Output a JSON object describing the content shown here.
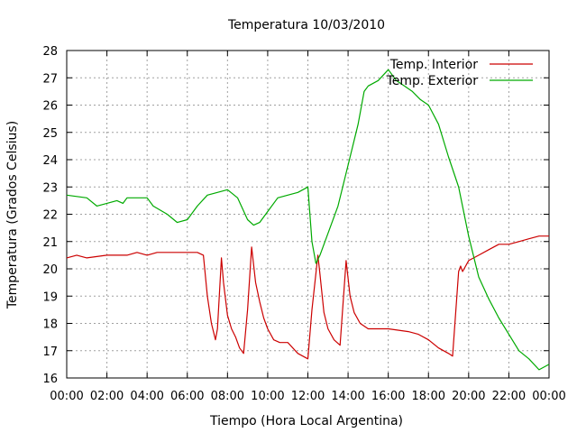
{
  "chart_data": {
    "type": "line",
    "title": "Temperatura 10/03/2010",
    "xlabel": "Tiempo (Hora Local Argentina)",
    "ylabel": "Temperatura (Grados Celsius)",
    "xlim": [
      0,
      24
    ],
    "ylim": [
      16,
      28
    ],
    "x_ticks": [
      "00:00",
      "02:00",
      "04:00",
      "06:00",
      "08:00",
      "10:00",
      "12:00",
      "14:00",
      "16:00",
      "18:00",
      "20:00",
      "22:00",
      "00:00"
    ],
    "y_ticks": [
      "16",
      "17",
      "18",
      "19",
      "20",
      "21",
      "22",
      "23",
      "24",
      "25",
      "26",
      "27",
      "28"
    ],
    "grid": true,
    "legend_position": "top-right",
    "series": [
      {
        "name": "Temp. Interior",
        "color": "#cc0000",
        "points": [
          [
            0,
            20.4
          ],
          [
            0.5,
            20.5
          ],
          [
            1,
            20.4
          ],
          [
            2,
            20.5
          ],
          [
            3,
            20.5
          ],
          [
            3.5,
            20.6
          ],
          [
            4,
            20.5
          ],
          [
            4.5,
            20.6
          ],
          [
            5,
            20.6
          ],
          [
            6,
            20.6
          ],
          [
            6.5,
            20.6
          ],
          [
            6.8,
            20.5
          ],
          [
            7,
            19.0
          ],
          [
            7.2,
            18.0
          ],
          [
            7.4,
            17.4
          ],
          [
            7.5,
            17.8
          ],
          [
            7.7,
            20.4
          ],
          [
            7.8,
            19.5
          ],
          [
            8,
            18.3
          ],
          [
            8.2,
            17.8
          ],
          [
            8.4,
            17.5
          ],
          [
            8.6,
            17.1
          ],
          [
            8.8,
            16.9
          ],
          [
            9,
            18.5
          ],
          [
            9.2,
            20.8
          ],
          [
            9.4,
            19.5
          ],
          [
            9.6,
            18.8
          ],
          [
            9.8,
            18.2
          ],
          [
            10,
            17.8
          ],
          [
            10.3,
            17.4
          ],
          [
            10.6,
            17.3
          ],
          [
            11,
            17.3
          ],
          [
            11.5,
            16.9
          ],
          [
            12,
            16.7
          ],
          [
            12.2,
            18.5
          ],
          [
            12.5,
            20.5
          ],
          [
            12.6,
            19.8
          ],
          [
            12.8,
            18.4
          ],
          [
            13,
            17.8
          ],
          [
            13.3,
            17.4
          ],
          [
            13.6,
            17.2
          ],
          [
            13.9,
            20.3
          ],
          [
            14.1,
            19.0
          ],
          [
            14.3,
            18.4
          ],
          [
            14.6,
            18.0
          ],
          [
            15,
            17.8
          ],
          [
            16,
            17.8
          ],
          [
            17,
            17.7
          ],
          [
            17.5,
            17.6
          ],
          [
            18,
            17.4
          ],
          [
            18.5,
            17.1
          ],
          [
            19,
            16.9
          ],
          [
            19.2,
            16.8
          ],
          [
            19.5,
            19.9
          ],
          [
            19.6,
            20.1
          ],
          [
            19.7,
            19.9
          ],
          [
            20,
            20.3
          ],
          [
            20.5,
            20.5
          ],
          [
            21,
            20.7
          ],
          [
            21.5,
            20.9
          ],
          [
            22,
            20.9
          ],
          [
            22.5,
            21.0
          ],
          [
            23,
            21.1
          ],
          [
            23.5,
            21.2
          ],
          [
            24,
            21.2
          ]
        ]
      },
      {
        "name": "Temp. Exterior",
        "color": "#00aa00",
        "points": [
          [
            0,
            22.7
          ],
          [
            1,
            22.6
          ],
          [
            1.5,
            22.3
          ],
          [
            2,
            22.4
          ],
          [
            2.5,
            22.5
          ],
          [
            2.8,
            22.4
          ],
          [
            3,
            22.6
          ],
          [
            4,
            22.6
          ],
          [
            4.3,
            22.3
          ],
          [
            5,
            22.0
          ],
          [
            5.5,
            21.7
          ],
          [
            6,
            21.8
          ],
          [
            6.5,
            22.3
          ],
          [
            7,
            22.7
          ],
          [
            7.5,
            22.8
          ],
          [
            8,
            22.9
          ],
          [
            8.5,
            22.6
          ],
          [
            9,
            21.8
          ],
          [
            9.3,
            21.6
          ],
          [
            9.6,
            21.7
          ],
          [
            10,
            22.1
          ],
          [
            10.5,
            22.6
          ],
          [
            11,
            22.7
          ],
          [
            11.5,
            22.8
          ],
          [
            12,
            23.0
          ],
          [
            12.2,
            21.0
          ],
          [
            12.4,
            20.2
          ],
          [
            12.6,
            20.5
          ],
          [
            13,
            21.3
          ],
          [
            13.5,
            22.3
          ],
          [
            14,
            23.8
          ],
          [
            14.5,
            25.3
          ],
          [
            14.8,
            26.5
          ],
          [
            15,
            26.7
          ],
          [
            15.5,
            26.9
          ],
          [
            16,
            27.3
          ],
          [
            16.4,
            26.9
          ],
          [
            16.8,
            26.7
          ],
          [
            17.2,
            26.5
          ],
          [
            17.6,
            26.2
          ],
          [
            18,
            26.0
          ],
          [
            18.5,
            25.3
          ],
          [
            19,
            24.1
          ],
          [
            19.5,
            23.0
          ],
          [
            20,
            21.2
          ],
          [
            20.5,
            19.7
          ],
          [
            21,
            18.9
          ],
          [
            21.5,
            18.2
          ],
          [
            22,
            17.6
          ],
          [
            22.5,
            17.0
          ],
          [
            23,
            16.7
          ],
          [
            23.5,
            16.3
          ],
          [
            24,
            16.5
          ]
        ]
      }
    ]
  }
}
